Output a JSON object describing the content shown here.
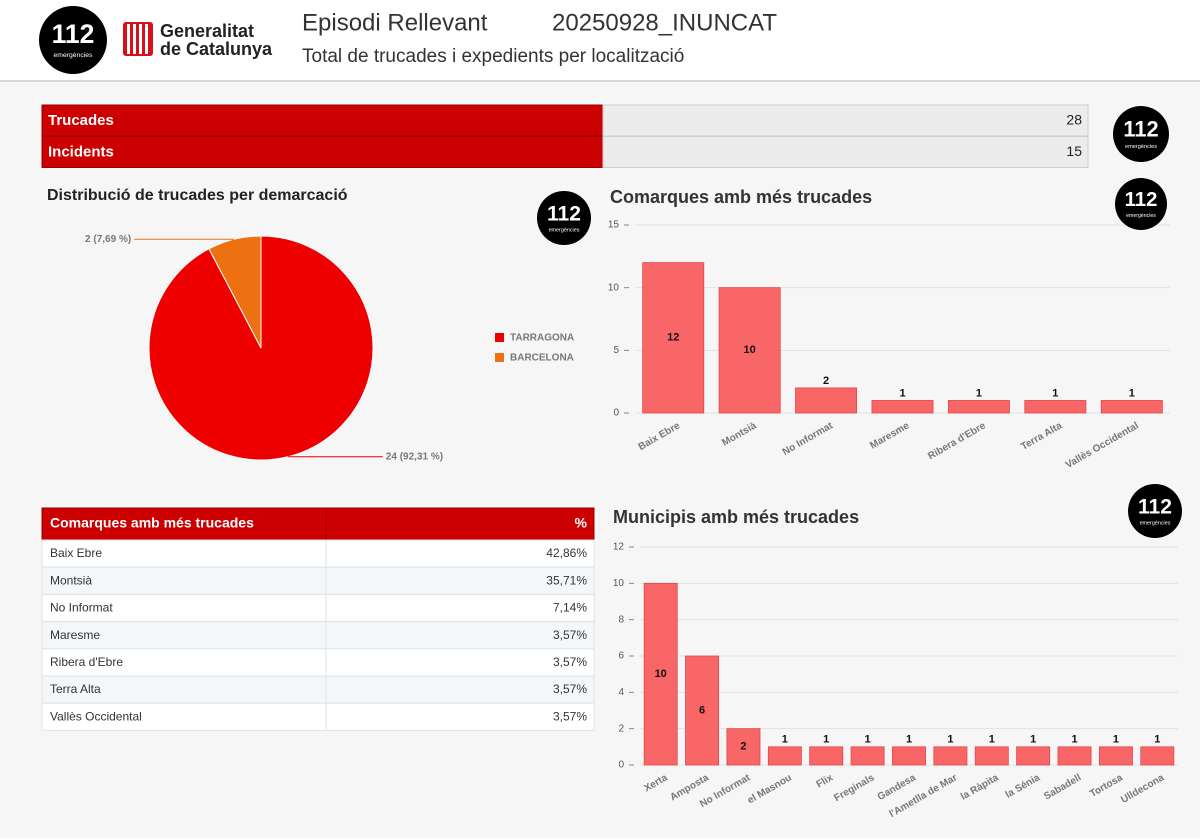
{
  "logo": {
    "number": "112",
    "caption": "emergències"
  },
  "header": {
    "org": [
      "Generalitat",
      "de Catalunya"
    ],
    "title": "Episodi Rellevant",
    "code": "20250928_INUNCAT",
    "subtitle": "Total de trucades i expedients per localització"
  },
  "summary": {
    "rows": [
      [
        "Trucades",
        28
      ],
      [
        "Incidents",
        15
      ]
    ]
  },
  "chart_data": [
    {
      "type": "pie",
      "title": "Distribució de trucades per demarcació",
      "categories": [
        "TARRAGONA",
        "BARCELONA"
      ],
      "values": [
        24,
        2
      ],
      "value_labels": [
        "24 (92,31 %)",
        "2 (7,69 %)"
      ],
      "colors": [
        "#ee0000",
        "#ee7111"
      ],
      "legend": "right"
    },
    {
      "type": "bar",
      "title": "Comarques amb més trucades",
      "categories": [
        "Baix Ebre",
        "Montsià",
        "No Informat",
        "Maresme",
        "Ribera d'Ebre",
        "Terra Alta",
        "Vallès Occidental"
      ],
      "values": [
        12,
        10,
        2,
        1,
        1,
        1,
        1
      ],
      "color": "#f96667",
      "ylim": [
        0,
        15
      ],
      "yticks": [
        0,
        5,
        10,
        15
      ],
      "grid": true
    },
    {
      "type": "bar",
      "title": "Municipis amb més trucades",
      "categories": [
        "Xerta",
        "Amposta",
        "No Informat",
        "el Masnou",
        "Flix",
        "Freginals",
        "Gandesa",
        "l'Ametlla de Mar",
        "la Ràpita",
        "la Sénia",
        "Sabadell",
        "Tortosa",
        "Ulldecona"
      ],
      "values": [
        10,
        6,
        2,
        1,
        1,
        1,
        1,
        1,
        1,
        1,
        1,
        1,
        1
      ],
      "color": "#f96667",
      "ylim": [
        0,
        12
      ],
      "yticks": [
        0,
        2,
        4,
        6,
        8,
        10,
        12
      ],
      "grid": true
    }
  ],
  "table": {
    "header": [
      "Comarques amb més trucades",
      "%"
    ],
    "rows": [
      [
        "Baix Ebre",
        "42,86%"
      ],
      [
        "Montsià",
        "35,71%"
      ],
      [
        "No Informat",
        "7,14%"
      ],
      [
        "Maresme",
        "3,57%"
      ],
      [
        "Ribera d'Ebre",
        "3,57%"
      ],
      [
        "Terra Alta",
        "3,57%"
      ],
      [
        "Vallès Occidental",
        "3,57%"
      ]
    ]
  }
}
